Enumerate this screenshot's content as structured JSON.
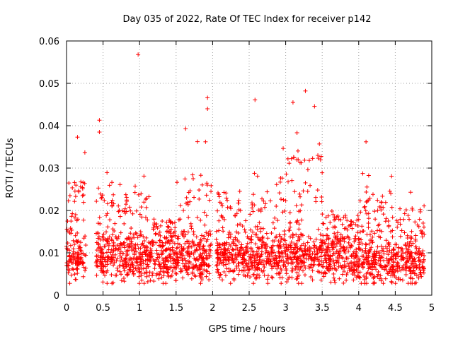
{
  "chart_data": {
    "type": "scatter",
    "title": "Day 035 of 2022, Rate Of TEC Index for receiver p142",
    "xlabel": "GPS time / hours",
    "ylabel": "ROTI / TECUs",
    "xlim": [
      0,
      5
    ],
    "ylim": [
      0,
      0.06
    ],
    "x_ticks": [
      0,
      0.5,
      1,
      1.5,
      2,
      2.5,
      3,
      3.5,
      4,
      4.5,
      5
    ],
    "x_tick_labels": [
      "0",
      "0.5",
      "1",
      "1.5",
      "2",
      "2.5",
      "3",
      "3.5",
      "4",
      "4.5",
      "5"
    ],
    "y_ticks": [
      0,
      0.01,
      0.02,
      0.03,
      0.04,
      0.05,
      0.06
    ],
    "y_tick_labels": [
      "0",
      "0.01",
      "0.02",
      "0.03",
      "0.04",
      "0.05",
      "0.06"
    ],
    "grid": true,
    "marker": "+",
    "color": "#ff0000",
    "x_data_range": [
      0,
      4.9
    ],
    "highlighted_points": [
      {
        "x": 0.98,
        "y": 0.0568
      },
      {
        "x": 1.93,
        "y": 0.0466
      },
      {
        "x": 1.93,
        "y": 0.044
      },
      {
        "x": 2.58,
        "y": 0.0461
      },
      {
        "x": 3.27,
        "y": 0.0482
      },
      {
        "x": 3.1,
        "y": 0.0455
      },
      {
        "x": 0.45,
        "y": 0.0413
      },
      {
        "x": 0.45,
        "y": 0.0385
      },
      {
        "x": 1.63,
        "y": 0.0393
      },
      {
        "x": 4.1,
        "y": 0.0362
      },
      {
        "x": 0.15,
        "y": 0.0373
      }
    ],
    "activity_bands": [
      {
        "x": [
          0.0,
          0.27
        ],
        "base": 0.009,
        "peak": 0.034
      },
      {
        "x": [
          0.4,
          1.15
        ],
        "base": 0.009,
        "peak": 0.029
      },
      {
        "x": [
          1.15,
          1.5
        ],
        "base": 0.008,
        "peak": 0.018
      },
      {
        "x": [
          1.5,
          1.98
        ],
        "base": 0.009,
        "peak": 0.038
      },
      {
        "x": [
          2.05,
          2.5
        ],
        "base": 0.009,
        "peak": 0.03
      },
      {
        "x": [
          2.5,
          2.95
        ],
        "base": 0.009,
        "peak": 0.03
      },
      {
        "x": [
          2.95,
          3.5
        ],
        "base": 0.009,
        "peak": 0.045
      },
      {
        "x": [
          3.5,
          4.0
        ],
        "base": 0.009,
        "peak": 0.02
      },
      {
        "x": [
          4.0,
          4.45
        ],
        "base": 0.008,
        "peak": 0.031
      },
      {
        "x": [
          4.45,
          4.9
        ],
        "base": 0.008,
        "peak": 0.025
      }
    ]
  }
}
